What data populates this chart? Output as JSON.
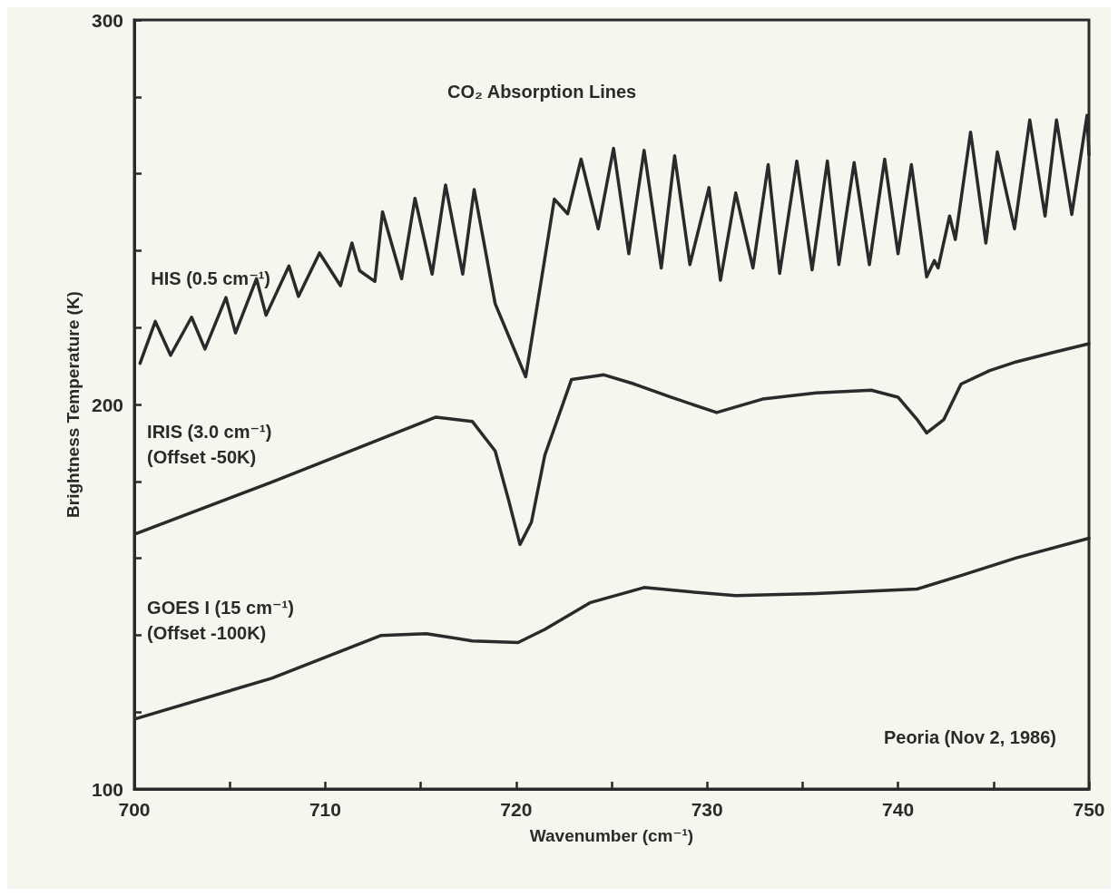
{
  "chart_data": {
    "type": "line",
    "title": "CO₂ Absorption Lines",
    "xlabel": "Wavenumber (cm⁻¹)",
    "ylabel": "Brightness Temperature (K)",
    "annotations": [
      "Peoria (Nov 2, 1986)"
    ],
    "xlim": [
      700,
      750
    ],
    "ylim": [
      100,
      300
    ],
    "xticks": [
      700,
      {
        "value": 705,
        "label": null
      },
      710,
      {
        "value": 715,
        "label": null
      },
      720,
      {
        "value": 725,
        "label": null
      },
      730,
      {
        "value": 735,
        "label": null
      },
      740,
      {
        "value": 745,
        "label": null
      },
      750
    ],
    "yticks": [
      100,
      {
        "value": 120,
        "label": null
      },
      {
        "value": 140,
        "label": null
      },
      {
        "value": 160,
        "label": null
      },
      {
        "value": 180,
        "label": null
      },
      200,
      {
        "value": 220,
        "label": null
      },
      {
        "value": 240,
        "label": null
      },
      {
        "value": 260,
        "label": null
      },
      {
        "value": 280,
        "label": null
      },
      300
    ],
    "grid": false,
    "legend": false,
    "marker": "none",
    "line_style": "solid",
    "series": [
      {
        "name": "HIS (0.5 cm⁻¹)",
        "color": "#2a2a2a",
        "x": [
          700.3,
          701.1,
          701.9,
          703.0,
          703.7,
          704.8,
          705.3,
          706.4,
          706.9,
          708.1,
          708.6,
          709.7,
          710.8,
          711.4,
          711.8,
          712.6,
          713.0,
          714.0,
          714.7,
          715.6,
          716.3,
          717.2,
          717.8,
          718.9,
          720.5,
          722.0,
          722.7,
          723.4,
          724.3,
          725.1,
          725.9,
          726.7,
          727.6,
          728.3,
          729.1,
          730.1,
          730.7,
          731.5,
          732.4,
          733.2,
          733.8,
          734.7,
          735.5,
          736.3,
          736.9,
          737.7,
          738.5,
          739.3,
          740.0,
          740.7,
          741.5,
          741.9,
          742.1,
          742.7,
          743.0,
          743.8,
          744.6,
          745.2,
          746.1,
          746.9,
          747.7,
          748.3,
          749.1,
          749.9,
          750.0
        ],
        "values": [
          210.7,
          221.6,
          212.8,
          222.7,
          214.4,
          227.8,
          218.6,
          232.7,
          223.2,
          236.0,
          228.1,
          239.4,
          230.9,
          242.0,
          234.8,
          232.0,
          250.1,
          232.7,
          253.6,
          233.9,
          257.1,
          233.9,
          255.9,
          226.2,
          207.2,
          253.4,
          249.6,
          263.8,
          245.7,
          266.6,
          239.2,
          266.1,
          235.5,
          264.7,
          236.4,
          256.4,
          232.3,
          255.0,
          235.5,
          262.4,
          234.1,
          263.3,
          235.0,
          263.3,
          236.4,
          262.9,
          236.4,
          263.8,
          239.2,
          262.4,
          233.2,
          237.4,
          235.5,
          249.0,
          242.9,
          270.8,
          242.0,
          265.7,
          245.7,
          274.0,
          249.0,
          274.0,
          249.4,
          275.2,
          265.0
        ]
      },
      {
        "name": "IRIS (3.0 cm⁻¹)\n(Offset -50K)",
        "color": "#2a2a2a",
        "x": [
          700.1,
          707.2,
          715.8,
          717.7,
          718.9,
          719.6,
          720.2,
          720.8,
          721.5,
          722.9,
          724.6,
          726.2,
          728.1,
          730.5,
          732.9,
          735.7,
          738.6,
          740.0,
          741.0,
          741.5,
          742.4,
          743.3,
          744.8,
          746.2,
          748.1,
          750.0
        ],
        "values": [
          166.4,
          179.8,
          196.7,
          195.6,
          187.9,
          175.2,
          163.6,
          169.4,
          186.8,
          206.5,
          207.7,
          205.3,
          201.9,
          197.9,
          201.4,
          203.0,
          203.7,
          201.9,
          196.1,
          192.6,
          196.1,
          205.3,
          208.8,
          211.1,
          213.5,
          215.8
        ]
      },
      {
        "name": "GOES I (15 cm⁻¹)\n(Offset -100K)",
        "color": "#2a2a2a",
        "x": [
          700.1,
          707.2,
          712.9,
          715.3,
          717.7,
          720.1,
          721.5,
          723.9,
          726.7,
          729.1,
          731.5,
          735.7,
          741.0,
          743.3,
          746.2,
          750.0
        ],
        "values": [
          118.3,
          128.8,
          139.9,
          140.4,
          138.5,
          138.1,
          141.5,
          148.5,
          152.4,
          151.3,
          150.3,
          150.8,
          152.0,
          155.5,
          160.1,
          165.2
        ]
      }
    ]
  }
}
